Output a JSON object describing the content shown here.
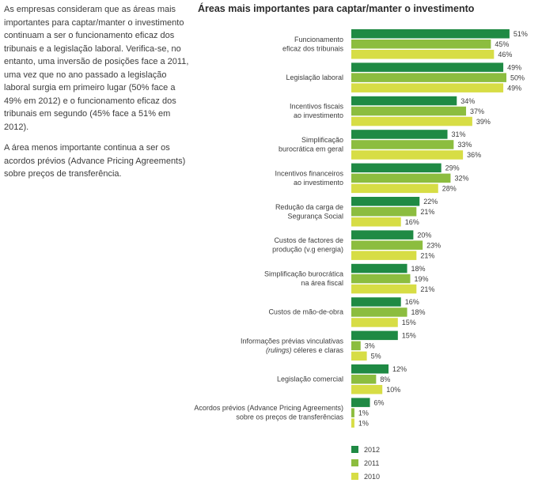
{
  "intro": {
    "paragraph1": "As empresas consideram que as áreas mais importantes para captar/manter o investimento continuam a ser o funcionamento eficaz dos tribunais e a legislação laboral. Verifica-se, no entanto, uma inversão de posições face a 2011, uma vez que no ano passado a legislação laboral surgia em primeiro lugar (50% face a 49% em 2012) e o funcionamento eficaz dos tribunais em segundo (45% face a 51% em 2012).",
    "paragraph2": "A  área menos importante continua a ser os acordos prévios (Advance Pricing Agreements) sobre preços de transferência."
  },
  "chart_data": {
    "type": "bar",
    "orientation": "horizontal",
    "title": "Áreas mais importantes para captar/manter o investimento",
    "xlabel": "",
    "ylabel": "",
    "value_suffix": "%",
    "xlim": [
      0,
      51
    ],
    "categories": [
      [
        "Funcionamento",
        "eficaz dos tribunais"
      ],
      [
        "Legislação laboral"
      ],
      [
        "Incentivos fiscais",
        "ao investimento"
      ],
      [
        "Simplificação",
        "burocrática em geral"
      ],
      [
        "Incentivos financeiros",
        "ao investimento"
      ],
      [
        "Redução da carga de",
        "Segurança Social"
      ],
      [
        "Custos de factores de",
        "produção (v.g energia)"
      ],
      [
        "Simplificação burocrática",
        "na área fiscal"
      ],
      [
        "Custos de mão-de-obra"
      ],
      [
        "Informações prévias vinculativas",
        "(rulings) céleres e claras"
      ],
      [
        "Legislação comercial"
      ],
      [
        "Acordos prévios (Advance Pricing Agreements)",
        "sobre os preços de transferências"
      ]
    ],
    "series": [
      {
        "name": "2012",
        "color": "#1f8a44",
        "values": [
          51,
          49,
          34,
          31,
          29,
          22,
          20,
          18,
          16,
          15,
          12,
          6
        ]
      },
      {
        "name": "2011",
        "color": "#8cbd3f",
        "values": [
          45,
          50,
          37,
          33,
          32,
          21,
          23,
          19,
          18,
          3,
          8,
          1
        ]
      },
      {
        "name": "2010",
        "color": "#d7dd45",
        "values": [
          46,
          49,
          39,
          36,
          28,
          16,
          21,
          21,
          15,
          5,
          10,
          1
        ]
      }
    ],
    "legend_position": "bottom-left"
  }
}
